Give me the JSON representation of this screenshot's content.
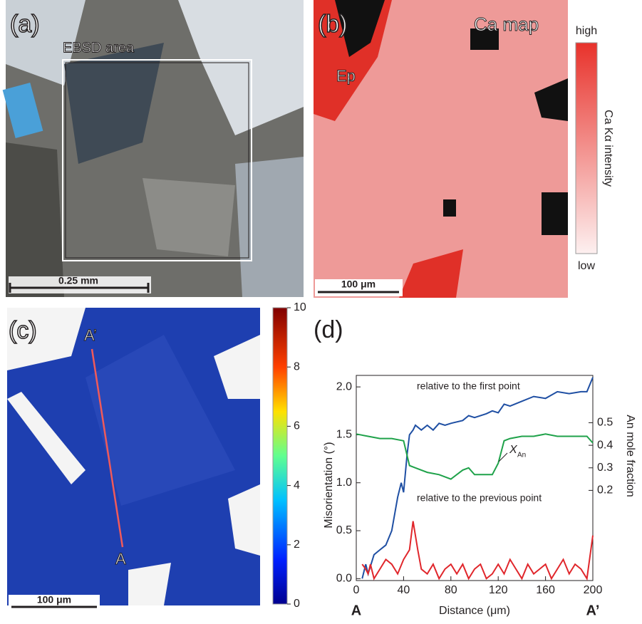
{
  "panels": {
    "a": {
      "label": "(a)",
      "box_label": "EBSD area",
      "scale_bar": "0.25 mm"
    },
    "b": {
      "label": "(b)",
      "title": "Ca map",
      "phase_label": "Ep",
      "scale_bar": "100 μm",
      "colorbar": {
        "label": "Ca Kα intensity",
        "high": "high",
        "low": "low"
      }
    },
    "c": {
      "label": "(c)",
      "point_start": "A",
      "point_end": "A’",
      "scale_bar": "100 μm",
      "colorbar": {
        "lim": [
          0,
          10
        ],
        "ticks": [
          0,
          2,
          4,
          6,
          8,
          10
        ]
      }
    }
  },
  "chart_data": {
    "type": "line",
    "panel_label": "(d)",
    "xlabel": "Distance (μm)",
    "ylabel": "Misorientation (°)",
    "y2label": "An mole fraction",
    "x_start_label": "A",
    "x_end_label": "A’",
    "xlim": [
      0,
      200
    ],
    "xticks": [
      0,
      40,
      80,
      120,
      160,
      200
    ],
    "ylim": [
      -0.02,
      2.12
    ],
    "yticks": [
      {
        "value": 0,
        "label": "0.0"
      },
      0.5,
      {
        "value": 1,
        "label": "1.0"
      },
      1.5,
      {
        "value": 2,
        "label": "2.0"
      }
    ],
    "y2lim": [
      -0.2,
      0.71
    ],
    "y2ticks": [
      0.2,
      0.3,
      0.4,
      0.5
    ],
    "series": [
      {
        "name": "relative to the first point",
        "color": "#1f4fa3",
        "x": [
          5,
          8,
          10,
          15,
          20,
          25,
          30,
          35,
          38,
          40,
          43,
          45,
          48,
          50,
          55,
          60,
          65,
          70,
          75,
          80,
          90,
          95,
          100,
          110,
          115,
          120,
          125,
          130,
          140,
          150,
          160,
          170,
          180,
          190,
          195,
          200
        ],
        "values": [
          0.0,
          0.15,
          0.05,
          0.25,
          0.3,
          0.35,
          0.5,
          0.85,
          1.0,
          0.9,
          1.3,
          1.5,
          1.55,
          1.6,
          1.55,
          1.6,
          1.55,
          1.62,
          1.6,
          1.62,
          1.65,
          1.7,
          1.68,
          1.72,
          1.75,
          1.73,
          1.82,
          1.8,
          1.85,
          1.9,
          1.88,
          1.95,
          1.93,
          1.95,
          1.95,
          2.1
        ]
      },
      {
        "name": "relative to the previous point",
        "color": "#e0262b",
        "x": [
          5,
          8,
          10,
          12,
          15,
          20,
          25,
          30,
          35,
          40,
          45,
          48,
          52,
          55,
          60,
          65,
          70,
          75,
          80,
          85,
          90,
          95,
          100,
          105,
          110,
          115,
          120,
          125,
          130,
          135,
          140,
          145,
          150,
          155,
          160,
          165,
          170,
          175,
          180,
          185,
          190,
          195,
          200
        ],
        "values": [
          0.15,
          0.1,
          0.05,
          0.15,
          0.0,
          0.1,
          0.2,
          0.15,
          0.05,
          0.2,
          0.3,
          0.6,
          0.3,
          0.1,
          0.05,
          0.15,
          0.0,
          0.1,
          0.15,
          0.05,
          0.15,
          0.0,
          0.1,
          0.15,
          0.0,
          0.05,
          0.15,
          0.05,
          0.2,
          0.1,
          0.0,
          0.15,
          0.05,
          0.1,
          0.15,
          0.0,
          0.1,
          0.2,
          0.05,
          0.15,
          0.1,
          0.0,
          0.45
        ]
      },
      {
        "name": "X",
        "name_sub": "An",
        "color": "#1fa24a",
        "axis": "y2",
        "x": [
          0,
          10,
          20,
          30,
          40,
          45,
          50,
          60,
          70,
          80,
          90,
          95,
          100,
          110,
          115,
          120,
          125,
          130,
          140,
          150,
          160,
          170,
          180,
          190,
          195,
          200
        ],
        "values": [
          0.45,
          0.44,
          0.43,
          0.43,
          0.42,
          0.31,
          0.3,
          0.28,
          0.27,
          0.25,
          0.29,
          0.3,
          0.27,
          0.27,
          0.27,
          0.32,
          0.42,
          0.43,
          0.44,
          0.44,
          0.45,
          0.44,
          0.44,
          0.44,
          0.44,
          0.41
        ]
      }
    ]
  }
}
